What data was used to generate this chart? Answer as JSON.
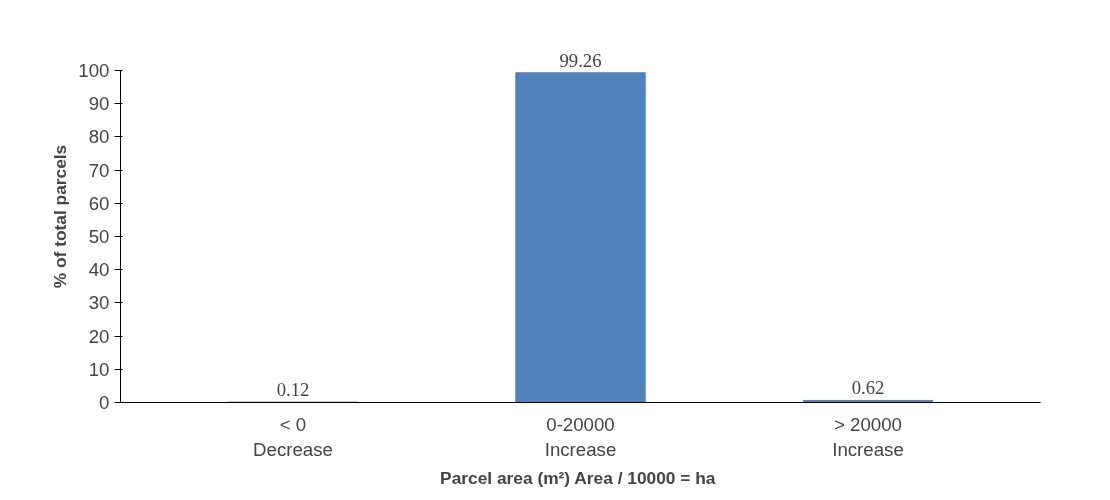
{
  "chart_data": {
    "type": "bar",
    "xlabel": "Parcel area (m²)  Area / 10000 = ha",
    "ylabel": "% of total parcels",
    "categories": [
      "< 0\nDecrease",
      "0-20000\nIncrease",
      "> 20000\nIncrease"
    ],
    "values": [
      0.12,
      99.26,
      0.62
    ],
    "color": "#4f81bd",
    "ylim": [
      0,
      100
    ],
    "yticks": [
      0,
      10,
      20,
      30,
      40,
      50,
      60,
      70,
      80,
      90,
      100
    ],
    "grid": false,
    "data_labels": true
  }
}
